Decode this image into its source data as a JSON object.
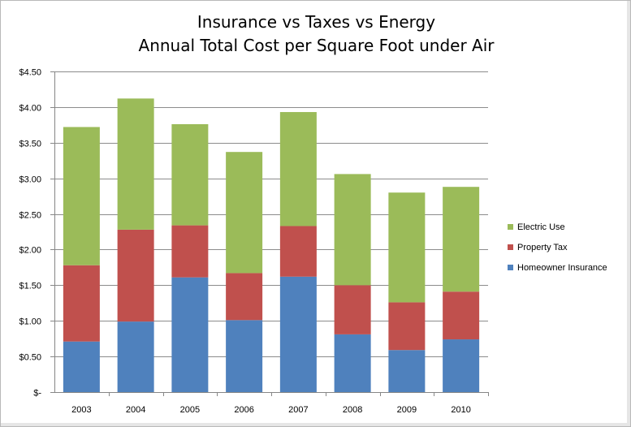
{
  "chart_data": {
    "type": "bar",
    "stacked": true,
    "title": "Insurance vs Taxes vs Energy",
    "subtitle": "Annual Total Cost per Square Foot under Air",
    "categories": [
      "2003",
      "2004",
      "2005",
      "2006",
      "2007",
      "2008",
      "2009",
      "2010"
    ],
    "ylim": [
      0,
      4.5
    ],
    "yticks": [
      0,
      0.5,
      1.0,
      1.5,
      2.0,
      2.5,
      3.0,
      3.5,
      4.0,
      4.5
    ],
    "ytick_labels": [
      "$-",
      "$0.50",
      "$1.00",
      "$1.50",
      "$2.00",
      "$2.50",
      "$3.00",
      "$3.50",
      "$4.00",
      "$4.50"
    ],
    "grid": true,
    "legend_position": "right",
    "series": [
      {
        "name": "Homeowner Insurance",
        "color": "#4f81bd",
        "values": [
          0.71,
          0.99,
          1.61,
          1.01,
          1.62,
          0.81,
          0.59,
          0.74
        ]
      },
      {
        "name": "Property Tax",
        "color": "#c0504d",
        "values": [
          1.07,
          1.29,
          0.73,
          0.66,
          0.71,
          0.69,
          0.67,
          0.67
        ]
      },
      {
        "name": "Electric Use",
        "color": "#9bbb59",
        "values": [
          1.94,
          1.84,
          1.42,
          1.7,
          1.6,
          1.56,
          1.54,
          1.47
        ]
      }
    ]
  }
}
